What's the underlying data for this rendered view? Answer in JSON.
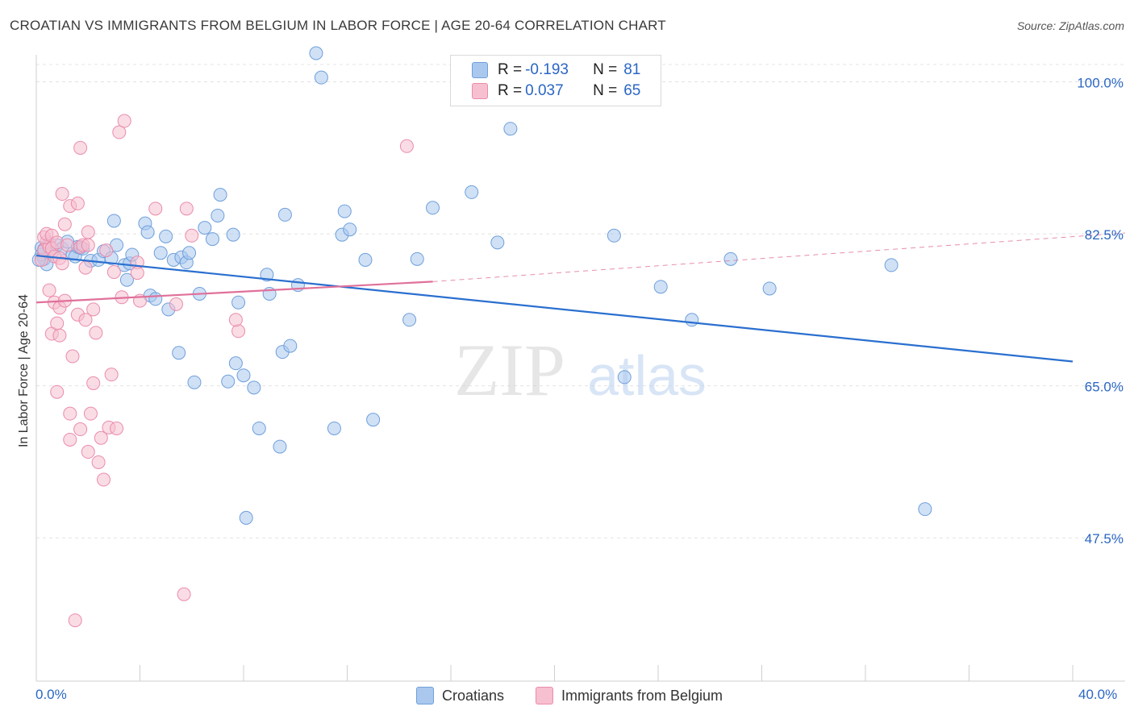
{
  "title": "CROATIAN VS IMMIGRANTS FROM BELGIUM IN LABOR FORCE | AGE 20-64 CORRELATION CHART",
  "source": "Source: ZipAtlas.com",
  "watermark": {
    "zip": "ZIP",
    "atlas": "atlas"
  },
  "legend": {
    "rows": [
      {
        "r_label": "R = ",
        "r_value": "-0.193",
        "n_label": "N = ",
        "n_value": "81"
      },
      {
        "r_label": "R = ",
        "r_value": "0.037",
        "n_label": "N = ",
        "n_value": "65"
      }
    ]
  },
  "colors": {
    "croatians_fill": "#aac8ee",
    "croatians_stroke": "#6f9fdb",
    "croatians_line": "#2a6fcf",
    "belgium_fill": "#f6c0d0",
    "belgium_stroke": "#ea8cab",
    "belgium_line": "#e0709a",
    "axis_text": "#2a66c4"
  },
  "chart_data": {
    "type": "scatter",
    "title": "CROATIAN VS IMMIGRANTS FROM BELGIUM IN LABOR FORCE | AGE 20-64 CORRELATION CHART",
    "xlabel": "",
    "ylabel": "In Labor Force | Age 20-64",
    "xlim": [
      0,
      40
    ],
    "ylim": [
      31,
      102
    ],
    "x_tick_labels": [
      "0.0%",
      "40.0%"
    ],
    "y_ticks": [
      100.0,
      82.5,
      65.0,
      47.5
    ],
    "y_tick_labels": [
      "100.0%",
      "82.5%",
      "65.0%",
      "47.5%"
    ],
    "series": [
      {
        "name": "Croatians",
        "r": -0.193,
        "n": 81,
        "trend": {
          "x": [
            0,
            40
          ],
          "y": [
            80.0,
            67.8
          ]
        },
        "points": [
          [
            0.2,
            80.9
          ],
          [
            0.3,
            79.6
          ],
          [
            0.4,
            79.0
          ],
          [
            0.5,
            81.4
          ],
          [
            0.6,
            80.4
          ],
          [
            0.8,
            81.2
          ],
          [
            1.0,
            80.8
          ],
          [
            1.2,
            81.6
          ],
          [
            1.4,
            80.2
          ],
          [
            1.5,
            79.9
          ],
          [
            1.6,
            81.0
          ],
          [
            1.7,
            80.9
          ],
          [
            1.8,
            80.8
          ],
          [
            2.1,
            79.4
          ],
          [
            2.4,
            79.5
          ],
          [
            2.6,
            80.5
          ],
          [
            2.9,
            79.7
          ],
          [
            3.0,
            84.0
          ],
          [
            3.1,
            81.2
          ],
          [
            3.4,
            78.9
          ],
          [
            3.5,
            77.2
          ],
          [
            3.6,
            79.1
          ],
          [
            3.7,
            80.1
          ],
          [
            4.2,
            83.7
          ],
          [
            4.3,
            82.7
          ],
          [
            4.4,
            75.4
          ],
          [
            4.6,
            75.0
          ],
          [
            4.8,
            80.3
          ],
          [
            5.0,
            82.2
          ],
          [
            5.1,
            73.8
          ],
          [
            5.3,
            79.5
          ],
          [
            5.5,
            68.8
          ],
          [
            5.6,
            79.8
          ],
          [
            5.8,
            79.2
          ],
          [
            5.9,
            80.3
          ],
          [
            6.1,
            65.4
          ],
          [
            6.3,
            75.6
          ],
          [
            6.5,
            83.2
          ],
          [
            6.8,
            81.9
          ],
          [
            7.0,
            84.6
          ],
          [
            7.1,
            87.0
          ],
          [
            7.4,
            65.5
          ],
          [
            7.6,
            82.4
          ],
          [
            7.7,
            67.6
          ],
          [
            7.8,
            74.6
          ],
          [
            8.0,
            66.2
          ],
          [
            8.1,
            49.8
          ],
          [
            8.4,
            64.8
          ],
          [
            8.6,
            60.1
          ],
          [
            8.9,
            77.8
          ],
          [
            9.0,
            75.6
          ],
          [
            9.4,
            58.0
          ],
          [
            9.5,
            68.9
          ],
          [
            9.8,
            69.6
          ],
          [
            9.6,
            84.7
          ],
          [
            10.1,
            76.6
          ],
          [
            11.0,
            100.5
          ],
          [
            11.5,
            60.1
          ],
          [
            11.8,
            82.4
          ],
          [
            11.9,
            85.1
          ],
          [
            12.1,
            83.0
          ],
          [
            12.7,
            79.5
          ],
          [
            13.0,
            61.1
          ],
          [
            14.4,
            72.6
          ],
          [
            14.7,
            79.6
          ],
          [
            15.3,
            85.5
          ],
          [
            16.8,
            87.3
          ],
          [
            17.8,
            81.5
          ],
          [
            18.3,
            94.6
          ],
          [
            22.7,
            66.0
          ],
          [
            22.3,
            82.3
          ],
          [
            24.1,
            76.4
          ],
          [
            25.3,
            72.6
          ],
          [
            26.8,
            79.6
          ],
          [
            28.3,
            76.2
          ],
          [
            33.0,
            78.9
          ],
          [
            34.3,
            50.8
          ],
          [
            0.2,
            80.1
          ],
          [
            0.3,
            80.7
          ],
          [
            10.8,
            103.3
          ],
          [
            0.1,
            79.5
          ]
        ]
      },
      {
        "name": "Immigrants from Belgium",
        "r": 0.037,
        "n": 65,
        "trend": {
          "x": [
            0,
            15.3
          ],
          "y": [
            74.6,
            77.0
          ]
        },
        "trend_ext": {
          "x": [
            15.3,
            40
          ],
          "y": [
            77.0,
            82.6
          ]
        },
        "points": [
          [
            0.2,
            79.5
          ],
          [
            0.3,
            80.6
          ],
          [
            0.4,
            81.6
          ],
          [
            0.5,
            81.0
          ],
          [
            0.6,
            80.8
          ],
          [
            0.7,
            79.9
          ],
          [
            0.3,
            82.1
          ],
          [
            0.4,
            82.5
          ],
          [
            0.6,
            82.3
          ],
          [
            0.8,
            81.5
          ],
          [
            0.5,
            76.0
          ],
          [
            0.6,
            71.0
          ],
          [
            0.7,
            74.6
          ],
          [
            0.8,
            64.3
          ],
          [
            0.8,
            72.2
          ],
          [
            0.9,
            70.8
          ],
          [
            0.9,
            74.0
          ],
          [
            0.9,
            79.7
          ],
          [
            1.0,
            87.1
          ],
          [
            1.1,
            83.6
          ],
          [
            1.1,
            74.8
          ],
          [
            1.2,
            81.2
          ],
          [
            1.3,
            58.8
          ],
          [
            1.3,
            85.7
          ],
          [
            1.3,
            61.8
          ],
          [
            1.4,
            68.4
          ],
          [
            1.5,
            38.0
          ],
          [
            1.6,
            86.0
          ],
          [
            1.6,
            73.2
          ],
          [
            1.7,
            81.0
          ],
          [
            1.7,
            60.0
          ],
          [
            1.7,
            92.4
          ],
          [
            1.8,
            81.2
          ],
          [
            1.9,
            72.6
          ],
          [
            1.9,
            78.6
          ],
          [
            2.0,
            57.4
          ],
          [
            2.0,
            81.2
          ],
          [
            2.0,
            82.7
          ],
          [
            2.1,
            61.8
          ],
          [
            2.2,
            65.3
          ],
          [
            2.2,
            73.8
          ],
          [
            2.3,
            71.1
          ],
          [
            2.4,
            56.2
          ],
          [
            2.5,
            59.0
          ],
          [
            2.6,
            54.2
          ],
          [
            2.7,
            80.6
          ],
          [
            2.8,
            60.2
          ],
          [
            2.9,
            66.3
          ],
          [
            3.0,
            78.1
          ],
          [
            3.1,
            60.1
          ],
          [
            3.2,
            94.2
          ],
          [
            3.3,
            75.2
          ],
          [
            3.4,
            95.5
          ],
          [
            3.9,
            79.2
          ],
          [
            3.9,
            78.0
          ],
          [
            4.0,
            74.8
          ],
          [
            4.6,
            85.4
          ],
          [
            5.4,
            74.4
          ],
          [
            5.8,
            85.4
          ],
          [
            5.7,
            41.0
          ],
          [
            6.0,
            82.3
          ],
          [
            7.8,
            71.3
          ],
          [
            7.7,
            72.6
          ],
          [
            14.3,
            92.6
          ],
          [
            1.0,
            79.1
          ]
        ]
      }
    ]
  },
  "bottom_legend": [
    "Croatians",
    "Immigrants from Belgium"
  ]
}
